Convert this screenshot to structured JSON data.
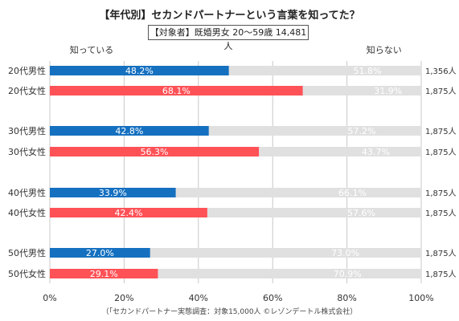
{
  "chart_data": {
    "type": "bar",
    "title": "【年代別】セカンドパートナーという言葉を知ってた？",
    "subtitle": "【対象者】既婚男女 20〜59歳 14,481人",
    "source": "（「セカンドパートナー実態調査：対象15,000人 ©レゾンデートル株式会社）",
    "stacked": true,
    "orientation": "horizontal",
    "xlim": [
      0,
      100
    ],
    "x_ticks": [
      "0%",
      "20%",
      "40%",
      "60%",
      "80%",
      "100%"
    ],
    "grid": true,
    "legend": [
      "知っている",
      "知らない"
    ],
    "categories": [
      "20代男性",
      "20代女性",
      "30代男性",
      "30代女性",
      "40代男性",
      "40代女性",
      "50代男性",
      "50代女性"
    ],
    "groups": [
      0,
      0,
      1,
      1,
      2,
      2,
      3,
      3
    ],
    "counts": [
      "1,356人",
      "1,875人",
      "1,875人",
      "1,875人",
      "1,875人",
      "1,875人",
      "1,875人",
      "1,875人"
    ],
    "series": [
      {
        "name": "知っている",
        "values": [
          48.2,
          68.1,
          42.8,
          56.3,
          33.9,
          42.4,
          27.0,
          29.1
        ]
      },
      {
        "name": "知らない",
        "values": [
          51.8,
          31.9,
          57.2,
          43.7,
          66.1,
          57.6,
          73.0,
          70.9
        ]
      }
    ],
    "value_labels": {
      "known": [
        "48.2%",
        "68.1%",
        "42.8%",
        "56.3%",
        "33.9%",
        "42.4%",
        "27.0%",
        "29.1%"
      ],
      "unknown": [
        "51.8%",
        "31.9%",
        "57.2%",
        "43.7%",
        "66.1%",
        "57.6%",
        "73.0%",
        "70.9%"
      ]
    },
    "colors": {
      "male": "#1570c0",
      "female": "#ff5257",
      "unknown": "#e0e0e0",
      "grid": "#c8c8c8"
    }
  }
}
